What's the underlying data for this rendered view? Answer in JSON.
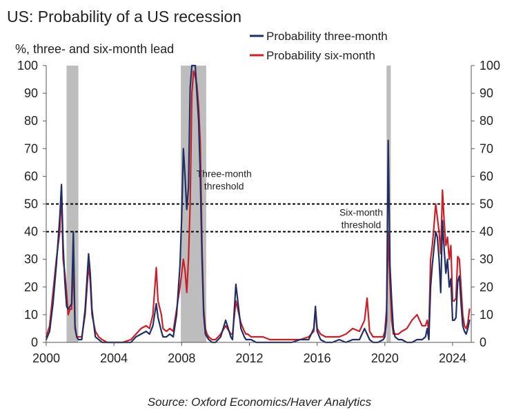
{
  "chart_data": {
    "type": "line",
    "title": "US: Probability of a US recession",
    "ylabel": "%, three- and six-month lead",
    "xlim": [
      2000,
      2025.1
    ],
    "ylim": [
      0,
      100
    ],
    "x_ticks": [
      2000,
      2004,
      2008,
      2012,
      2016,
      2020,
      2024
    ],
    "x_tick_labels": [
      "2000",
      "2004",
      "2008",
      "2012",
      "2016",
      "2020",
      "2024"
    ],
    "y_ticks": [
      0,
      10,
      20,
      30,
      40,
      50,
      60,
      70,
      80,
      90,
      100
    ],
    "y_tick_labels": [
      "0",
      "10",
      "20",
      "30",
      "40",
      "50",
      "60",
      "70",
      "80",
      "90",
      "100"
    ],
    "grid": false,
    "legend_position": "top-right",
    "recessions": [
      [
        2001.2,
        2001.9
      ],
      [
        2007.95,
        2009.45
      ],
      [
        2020.1,
        2020.35
      ]
    ],
    "thresholds": [
      {
        "value": 50,
        "label_lines": [
          "Three-month",
          "threshold"
        ],
        "label_x": 2010.5
      },
      {
        "value": 40,
        "label_lines": [
          "Six-month",
          "threshold"
        ],
        "label_x": 2018.6
      }
    ],
    "series": [
      {
        "name": "Probability three-month",
        "color": "#1f2f66",
        "x": [
          2000.0,
          2000.2,
          2000.4,
          2000.6,
          2000.8,
          2000.9,
          2001.0,
          2001.1,
          2001.2,
          2001.3,
          2001.4,
          2001.5,
          2001.6,
          2001.7,
          2001.8,
          2001.9,
          2002.1,
          2002.3,
          2002.5,
          2002.6,
          2002.7,
          2002.9,
          2003.1,
          2003.3,
          2003.6,
          2004.0,
          2004.5,
          2005.0,
          2005.3,
          2005.6,
          2005.9,
          2006.1,
          2006.3,
          2006.5,
          2006.6,
          2006.8,
          2006.9,
          2007.1,
          2007.3,
          2007.5,
          2007.7,
          2007.9,
          2008.0,
          2008.1,
          2008.2,
          2008.3,
          2008.4,
          2008.5,
          2008.6,
          2008.7,
          2008.8,
          2008.9,
          2009.0,
          2009.1,
          2009.2,
          2009.3,
          2009.4,
          2009.5,
          2009.6,
          2009.8,
          2010.0,
          2010.3,
          2010.6,
          2010.8,
          2010.9,
          2011.0,
          2011.2,
          2011.5,
          2011.7,
          2011.8,
          2011.9,
          2012.1,
          2012.4,
          2012.8,
          2013.2,
          2013.6,
          2014.0,
          2014.5,
          2015.0,
          2015.5,
          2015.8,
          2015.9,
          2016.0,
          2016.2,
          2016.5,
          2016.9,
          2017.3,
          2017.7,
          2018.1,
          2018.5,
          2018.8,
          2018.95,
          2019.1,
          2019.3,
          2019.6,
          2019.9,
          2020.0,
          2020.1,
          2020.2,
          2020.3,
          2020.4,
          2020.5,
          2020.6,
          2020.8,
          2021.0,
          2021.3,
          2021.6,
          2021.9,
          2022.2,
          2022.4,
          2022.5,
          2022.6,
          2022.7,
          2022.8,
          2022.9,
          2023.0,
          2023.1,
          2023.2,
          2023.3,
          2023.4,
          2023.5,
          2023.6,
          2023.7,
          2023.8,
          2023.9,
          2024.0,
          2024.1,
          2024.2,
          2024.3,
          2024.4,
          2024.5,
          2024.6,
          2024.7,
          2024.8,
          2024.9,
          2025.0
        ],
        "values": [
          1,
          4,
          14,
          28,
          45,
          57,
          35,
          22,
          13,
          12,
          13,
          14,
          40,
          6,
          2,
          1,
          1,
          12,
          32,
          25,
          12,
          2,
          1,
          0,
          0,
          0,
          0,
          0,
          2,
          3,
          4,
          3,
          6,
          14,
          9,
          4,
          2,
          2,
          3,
          2,
          10,
          28,
          45,
          70,
          60,
          48,
          56,
          92,
          100,
          100,
          100,
          90,
          80,
          60,
          30,
          10,
          3,
          2,
          1,
          0,
          0,
          2,
          8,
          4,
          2,
          1,
          21,
          5,
          2,
          1,
          1,
          1,
          0,
          0,
          0,
          0,
          0,
          0,
          1,
          1,
          5,
          13,
          4,
          1,
          0,
          0,
          1,
          0,
          1,
          1,
          5,
          3,
          1,
          0,
          0,
          1,
          2,
          8,
          73,
          28,
          15,
          5,
          2,
          1,
          1,
          0,
          0,
          1,
          1,
          2,
          5,
          1,
          20,
          28,
          34,
          40,
          38,
          30,
          18,
          44,
          34,
          25,
          30,
          20,
          23,
          8,
          8,
          9,
          22,
          24,
          14,
          6,
          4,
          3,
          5,
          8
        ]
      },
      {
        "name": "Probability six-month",
        "color": "#cc1f25",
        "x": [
          2000.0,
          2000.2,
          2000.4,
          2000.6,
          2000.8,
          2000.9,
          2001.0,
          2001.1,
          2001.2,
          2001.3,
          2001.4,
          2001.5,
          2001.6,
          2001.7,
          2001.8,
          2001.9,
          2002.1,
          2002.3,
          2002.5,
          2002.6,
          2002.7,
          2002.9,
          2003.1,
          2003.3,
          2003.6,
          2004.0,
          2004.5,
          2005.0,
          2005.3,
          2005.6,
          2005.9,
          2006.1,
          2006.3,
          2006.5,
          2006.6,
          2006.8,
          2006.9,
          2007.1,
          2007.3,
          2007.5,
          2007.7,
          2007.9,
          2008.0,
          2008.1,
          2008.2,
          2008.3,
          2008.4,
          2008.5,
          2008.6,
          2008.7,
          2008.8,
          2008.9,
          2009.0,
          2009.1,
          2009.2,
          2009.3,
          2009.4,
          2009.5,
          2009.6,
          2009.8,
          2010.0,
          2010.3,
          2010.6,
          2010.8,
          2010.9,
          2011.0,
          2011.2,
          2011.5,
          2011.7,
          2011.8,
          2011.9,
          2012.1,
          2012.4,
          2012.8,
          2013.2,
          2013.6,
          2014.0,
          2014.5,
          2015.0,
          2015.5,
          2015.8,
          2015.9,
          2016.0,
          2016.2,
          2016.5,
          2016.9,
          2017.3,
          2017.7,
          2018.1,
          2018.5,
          2018.8,
          2018.95,
          2019.1,
          2019.3,
          2019.6,
          2019.9,
          2020.0,
          2020.1,
          2020.2,
          2020.3,
          2020.4,
          2020.5,
          2020.6,
          2020.8,
          2021.0,
          2021.3,
          2021.6,
          2021.9,
          2022.2,
          2022.4,
          2022.5,
          2022.6,
          2022.7,
          2022.8,
          2022.9,
          2023.0,
          2023.1,
          2023.2,
          2023.3,
          2023.4,
          2023.5,
          2023.6,
          2023.7,
          2023.8,
          2023.9,
          2024.0,
          2024.1,
          2024.2,
          2024.3,
          2024.4,
          2024.5,
          2024.6,
          2024.7,
          2024.8,
          2024.9,
          2025.0
        ],
        "values": [
          2,
          6,
          18,
          30,
          40,
          55,
          30,
          25,
          18,
          10,
          12,
          12,
          30,
          5,
          2,
          2,
          2,
          10,
          28,
          22,
          10,
          4,
          2,
          1,
          0,
          0,
          0,
          1,
          3,
          5,
          6,
          5,
          10,
          27,
          15,
          10,
          5,
          4,
          5,
          4,
          12,
          20,
          25,
          30,
          26,
          18,
          30,
          50,
          90,
          98,
          96,
          93,
          85,
          72,
          35,
          12,
          5,
          3,
          2,
          1,
          1,
          3,
          6,
          4,
          3,
          3,
          15,
          7,
          4,
          3,
          3,
          2,
          2,
          2,
          1,
          1,
          1,
          1,
          1,
          2,
          4,
          12,
          5,
          3,
          2,
          2,
          2,
          3,
          5,
          4,
          8,
          16,
          4,
          2,
          2,
          2,
          4,
          12,
          40,
          22,
          8,
          3,
          3,
          3,
          4,
          5,
          8,
          10,
          6,
          6,
          8,
          4,
          30,
          35,
          42,
          50,
          45,
          40,
          32,
          55,
          44,
          35,
          38,
          30,
          35,
          15,
          15,
          16,
          31,
          30,
          20,
          10,
          6,
          5,
          7,
          12
        ]
      }
    ],
    "source": "Source: Oxford Economics/Haver Analytics"
  }
}
